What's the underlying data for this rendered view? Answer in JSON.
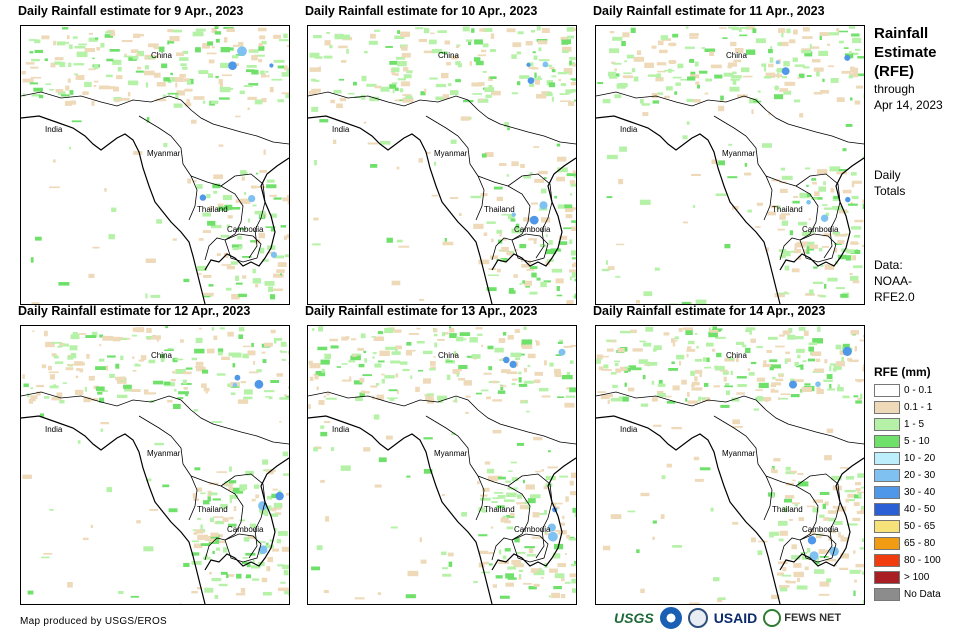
{
  "panels": [
    {
      "title": "Daily Rainfall estimate for 9 Apr., 2023",
      "day": 9
    },
    {
      "title": "Daily Rainfall estimate for 10 Apr., 2023",
      "day": 10
    },
    {
      "title": "Daily Rainfall estimate for 11 Apr., 2023",
      "day": 11
    },
    {
      "title": "Daily Rainfall estimate for 12 Apr., 2023",
      "day": 12
    },
    {
      "title": "Daily Rainfall estimate for 13 Apr., 2023",
      "day": 13
    },
    {
      "title": "Daily Rainfall estimate for 14 Apr., 2023",
      "day": 14
    }
  ],
  "places": {
    "china": "China",
    "india": "India",
    "myanmar": "Myanmar",
    "thailand": "Thailand",
    "cambodia": "Cambodia"
  },
  "sidebar": {
    "title_line1": "Rainfall",
    "title_line2": "Estimate",
    "title_line3": "(RFE)",
    "through": "through",
    "date": "Apr 14, 2023",
    "totals_line1": "Daily",
    "totals_line2": "Totals",
    "data_line1": "Data:",
    "data_line2": "NOAA-",
    "data_line3": "RFE2.0"
  },
  "legend": {
    "title": "RFE (mm)",
    "items": [
      {
        "label": "0 - 0.1",
        "color": "#ffffff"
      },
      {
        "label": "0.1 - 1",
        "color": "#eed9b8"
      },
      {
        "label": "1 - 5",
        "color": "#b5f2a8"
      },
      {
        "label": "5 - 10",
        "color": "#6fe06a"
      },
      {
        "label": "10 - 20",
        "color": "#bdeefb"
      },
      {
        "label": "20 - 30",
        "color": "#7fc1f0"
      },
      {
        "label": "30 - 40",
        "color": "#4f97e8"
      },
      {
        "label": "40 - 50",
        "color": "#2b5fd6"
      },
      {
        "label": "50 - 65",
        "color": "#f7e27a"
      },
      {
        "label": "65 - 80",
        "color": "#f29c14"
      },
      {
        "label": "80 - 100",
        "color": "#f03c0f"
      },
      {
        "label": "> 100",
        "color": "#a81e22"
      },
      {
        "label": "No Data",
        "color": "#8c8c8c"
      }
    ]
  },
  "credit": "Map produced by USGS/EROS",
  "logos": {
    "usgs": "USGS",
    "usaid": "USAID",
    "fews": "FEWS NET"
  }
}
